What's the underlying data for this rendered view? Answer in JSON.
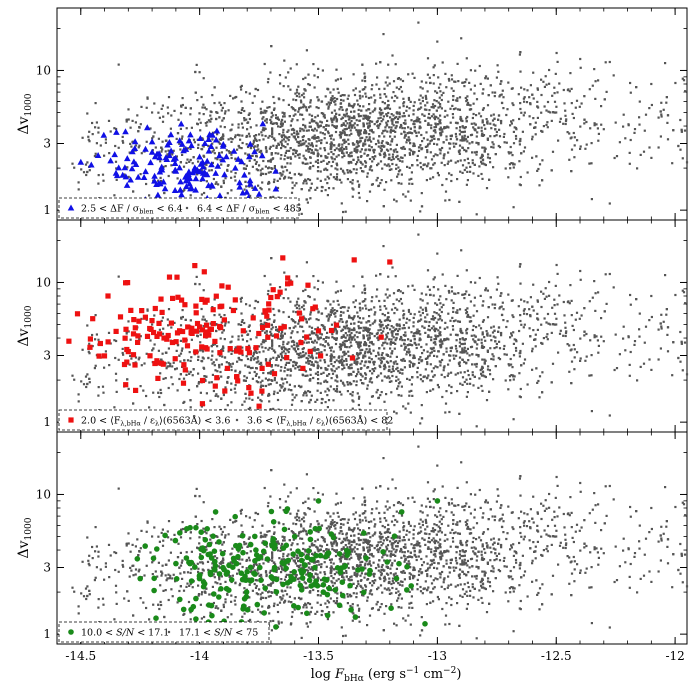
{
  "chart_data": {
    "type": "scatter",
    "shared_x": {
      "label_main": "log ",
      "label_sym": "F",
      "label_sub": "bHα",
      "label_units": " (erg s",
      "label_exp1": "−1",
      "label_units2": " cm",
      "label_exp2": "−2",
      "label_close": ")",
      "xlim": [
        -14.6,
        -11.95
      ],
      "ticks": [
        -14.5,
        -14,
        -13.5,
        -13,
        -12.5,
        -12
      ],
      "tick_labels": [
        "-14.5",
        "-14",
        "-13.5",
        "-13",
        "-12.5",
        "-12"
      ]
    },
    "y_scale": "log",
    "ylim": [
      0.85,
      28
    ],
    "y_ticks": [
      1,
      3,
      10
    ],
    "y_tick_labels": [
      "1",
      "3",
      "10"
    ],
    "y_label_main": "Δv",
    "y_label_sub": "1000",
    "background_series": {
      "color": "#555555",
      "count_note": "approx 4000 grey dots per panel, log F from -14.55 to -11.95, Δv from 0.9 to 24",
      "sample": [
        {
          "x": -14.45,
          "y": 3.5
        },
        {
          "x": -14.2,
          "y": 5.0
        },
        {
          "x": -13.95,
          "y": 2.8
        },
        {
          "x": -13.7,
          "y": 4.2
        },
        {
          "x": -13.5,
          "y": 3.3
        },
        {
          "x": -13.3,
          "y": 6.5
        },
        {
          "x": -13.1,
          "y": 3.0
        },
        {
          "x": -12.9,
          "y": 4.5
        },
        {
          "x": -12.7,
          "y": 2.6
        },
        {
          "x": -12.5,
          "y": 5.0
        },
        {
          "x": -12.3,
          "y": 3.8
        },
        {
          "x": -12.1,
          "y": 8.0
        },
        {
          "x": -13.08,
          "y": 22
        },
        {
          "x": -12.9,
          "y": 17
        },
        {
          "x": -12.35,
          "y": 1.2
        },
        {
          "x": -13.9,
          "y": 0.95
        },
        {
          "x": -11.95,
          "y": 2.2
        }
      ]
    },
    "panels": [
      {
        "highlight": {
          "color": "#1010e6",
          "marker": "triangle",
          "x_range": [
            -14.5,
            -13.65
          ],
          "y_range": [
            1.0,
            4.2
          ],
          "sample": [
            {
              "x": -14.5,
              "y": 2.2
            },
            {
              "x": -14.35,
              "y": 3.6
            },
            {
              "x": -14.2,
              "y": 2.6
            },
            {
              "x": -14.1,
              "y": 1.9
            },
            {
              "x": -14.0,
              "y": 2.4
            },
            {
              "x": -13.95,
              "y": 1.5
            },
            {
              "x": -13.85,
              "y": 2.0
            },
            {
              "x": -13.75,
              "y": 1.3
            },
            {
              "x": -13.68,
              "y": 1.9
            }
          ]
        },
        "legend": {
          "highlight_label_parts": [
            "2.5 < ΔF / σ",
            "blen",
            " < 6.4"
          ],
          "background_label_parts": [
            "6.4 < ΔF / σ",
            "blen",
            " < 485"
          ]
        }
      },
      {
        "highlight": {
          "color": "#ee1111",
          "marker": "square",
          "x_range": [
            -14.55,
            -13.15
          ],
          "y_range": [
            1.0,
            15
          ],
          "sample": [
            {
              "x": -14.55,
              "y": 3.8
            },
            {
              "x": -14.45,
              "y": 5.5
            },
            {
              "x": -14.3,
              "y": 3.2
            },
            {
              "x": -14.15,
              "y": 4.0
            },
            {
              "x": -14.0,
              "y": 4.8
            },
            {
              "x": -13.85,
              "y": 7.5
            },
            {
              "x": -13.65,
              "y": 15
            },
            {
              "x": -13.5,
              "y": 4.5
            },
            {
              "x": -13.35,
              "y": 14.5
            },
            {
              "x": -13.2,
              "y": 14
            },
            {
              "x": -13.75,
              "y": 1.3
            }
          ]
        },
        "legend": {
          "highlight_label_parts": [
            "2.0 < ⟨F",
            "λ,bHα",
            " / ε",
            "λ",
            "⟩(6563Å) < 3.6"
          ],
          "background_label_parts": [
            "3.6 < ⟨F",
            "λ,bHα",
            " / ε",
            "λ",
            "⟩(6563Å) < 82"
          ]
        }
      },
      {
        "highlight": {
          "color": "#1a8a1a",
          "marker": "circle",
          "x_range": [
            -14.3,
            -12.95
          ],
          "y_range": [
            1.0,
            10
          ],
          "sample": [
            {
              "x": -14.25,
              "y": 2.5
            },
            {
              "x": -14.1,
              "y": 3.2
            },
            {
              "x": -13.95,
              "y": 1.6
            },
            {
              "x": -13.8,
              "y": 2.8
            },
            {
              "x": -13.6,
              "y": 5.0
            },
            {
              "x": -13.5,
              "y": 9.0
            },
            {
              "x": -13.3,
              "y": 3.5
            },
            {
              "x": -13.15,
              "y": 7.5
            },
            {
              "x": -13.0,
              "y": 9.0
            }
          ]
        },
        "legend": {
          "highlight_label_parts": [
            "10.0 < ",
            "S/N",
            " < 17.1"
          ],
          "background_label_parts": [
            "17.1 < ",
            "S/N",
            " < 75"
          ]
        }
      }
    ]
  }
}
